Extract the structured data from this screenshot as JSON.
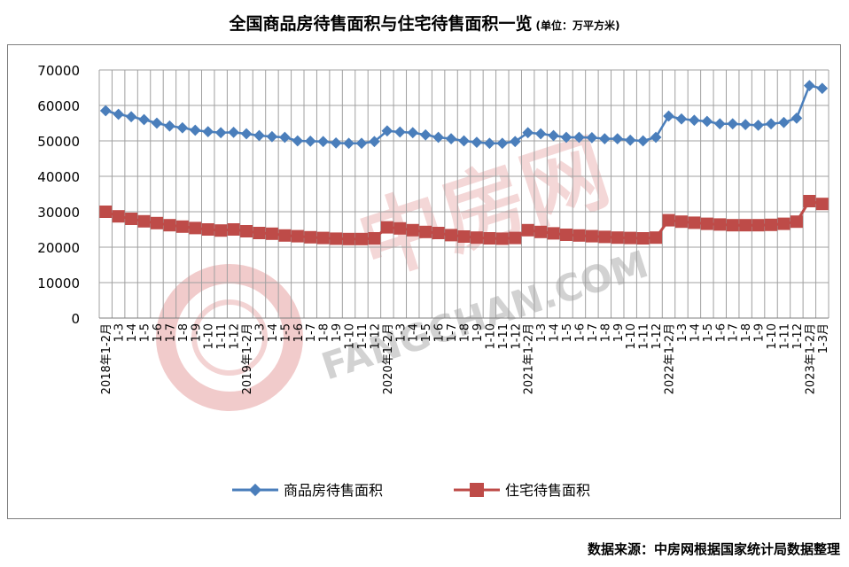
{
  "title": "全国商品房待售面积与住宅待售面积一览",
  "unit": "(单位：万平方米)",
  "source": "数据来源：中房网根据国家统计局数据整理",
  "watermark": {
    "brand_cn": "中房网",
    "brand_en": "FANGCHAN.COM",
    "color": "#e8a8a8"
  },
  "colors": {
    "series1": "#4a7ebb",
    "series2": "#be4b48",
    "grid": "#a0a0a0"
  },
  "chart_data": {
    "type": "line",
    "title": "全国商品房待售面积与住宅待售面积一览",
    "ylim": [
      0,
      70000
    ],
    "yticks": [
      0,
      10000,
      20000,
      30000,
      40000,
      50000,
      60000,
      70000
    ],
    "grid": true,
    "legend": "bottom",
    "categories": [
      "2018年1-2月",
      "1-3",
      "1-4",
      "1-5",
      "1-6",
      "1-7",
      "1-8",
      "1-9",
      "1-10",
      "1-11",
      "1-12",
      "2019年1-2月",
      "1-3",
      "1-4",
      "1-5",
      "1-6",
      "1-7",
      "1-8",
      "1-9",
      "1-10",
      "1-11",
      "1-12",
      "2020年1-2月",
      "1-3",
      "1-4",
      "1-5",
      "1-6",
      "1-7",
      "1-8",
      "1-9",
      "1-10",
      "1-11",
      "1-12",
      "2021年1-2月",
      "1-3",
      "1-4",
      "1-5",
      "1-6",
      "1-7",
      "1-8",
      "1-9",
      "1-10",
      "1-11",
      "1-12",
      "2022年1-2月",
      "1-3",
      "1-4",
      "1-5",
      "1-6",
      "1-7",
      "1-8",
      "1-9",
      "1-10",
      "1-11",
      "1-12",
      "2023年1-2月",
      "1-3月"
    ],
    "series": [
      {
        "name": "商品房待售面积",
        "values": [
          58500,
          57500,
          56800,
          56000,
          55000,
          54200,
          53700,
          53000,
          52600,
          52300,
          52400,
          52000,
          51500,
          51200,
          51000,
          50000,
          49900,
          49800,
          49400,
          49300,
          49300,
          49800,
          52800,
          52500,
          52300,
          51700,
          51000,
          50600,
          50000,
          49600,
          49300,
          49300,
          49800,
          52300,
          52000,
          51500,
          51000,
          51000,
          50900,
          50600,
          50600,
          50200,
          50000,
          51000,
          57000,
          56200,
          55800,
          55500,
          54800,
          54800,
          54600,
          54400,
          54800,
          55200,
          56400,
          65600,
          64800
        ]
      },
      {
        "name": "住宅待售面积",
        "values": [
          30000,
          28700,
          28000,
          27300,
          26800,
          26200,
          25800,
          25400,
          25000,
          24700,
          25000,
          24500,
          24000,
          23800,
          23300,
          23100,
          22800,
          22600,
          22400,
          22300,
          22300,
          22500,
          25600,
          25300,
          24800,
          24300,
          24000,
          23400,
          23000,
          22700,
          22500,
          22400,
          22600,
          24800,
          24300,
          23900,
          23500,
          23300,
          23100,
          22900,
          22700,
          22600,
          22500,
          22700,
          27600,
          27200,
          26900,
          26600,
          26400,
          26200,
          26200,
          26200,
          26300,
          26600,
          27200,
          33000,
          32200
        ]
      }
    ]
  }
}
